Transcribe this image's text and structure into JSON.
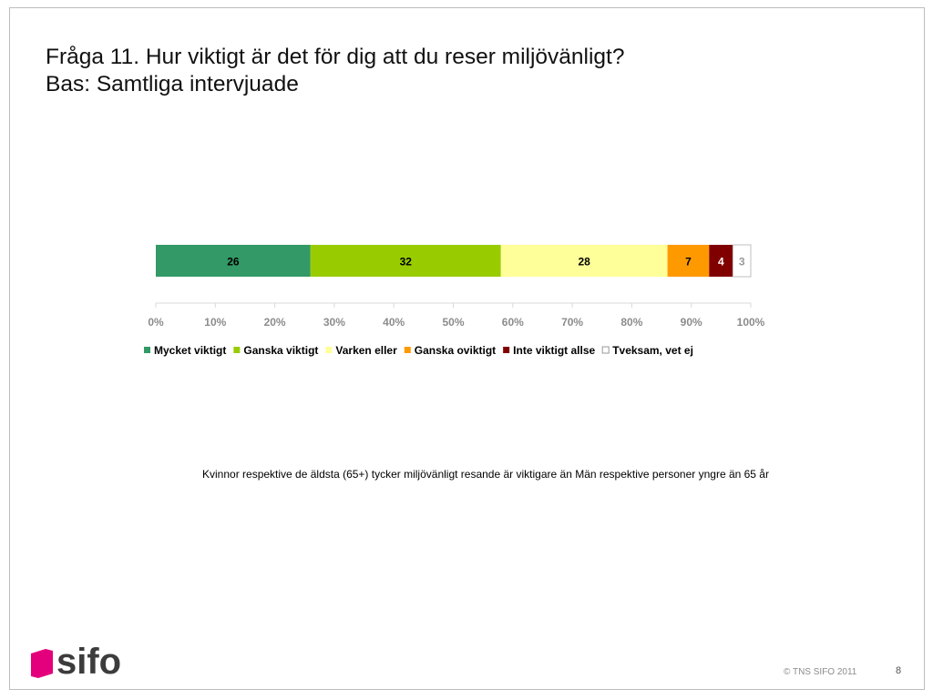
{
  "slide": {
    "title_line1": "Fråga 11. Hur viktigt är det för dig att du reser miljövänligt?",
    "title_line2": "Bas: Samtliga intervjuade",
    "note": "Kvinnor respektive de äldsta (65+) tycker miljövänligt resande är viktigare än Män respektive personer yngre än 65 år",
    "copyright": "© TNS SIFO 2011",
    "page_number": "8",
    "logo_text": "sifo",
    "logo_colors": {
      "mark": "#e4007c",
      "text": "#3c3c3c"
    }
  },
  "chart_data": {
    "type": "bar",
    "orientation": "horizontal",
    "stacked": true,
    "percent_stacked": true,
    "categories": [
      ""
    ],
    "series": [
      {
        "name": "Mycket viktigt",
        "values": [
          26
        ],
        "color": "#339966",
        "label_color": "#000000"
      },
      {
        "name": "Ganska viktigt",
        "values": [
          32
        ],
        "color": "#99cc00",
        "label_color": "#000000"
      },
      {
        "name": "Varken eller",
        "values": [
          28
        ],
        "color": "#ffff99",
        "label_color": "#000000"
      },
      {
        "name": "Ganska oviktigt",
        "values": [
          7
        ],
        "color": "#ff9900",
        "label_color": "#000000"
      },
      {
        "name": "Inte viktigt allse",
        "values": [
          4
        ],
        "color": "#800000",
        "label_color": "#ffffff"
      },
      {
        "name": "Tveksam, vet ej",
        "values": [
          3
        ],
        "color": "#ffffff",
        "label_color": "#999999"
      }
    ],
    "xlim": [
      0,
      100
    ],
    "x_ticks": [
      "0%",
      "10%",
      "20%",
      "30%",
      "40%",
      "50%",
      "60%",
      "70%",
      "80%",
      "90%",
      "100%"
    ],
    "tick_color": "#8c8c8c",
    "grid": false,
    "legend_position": "bottom"
  }
}
